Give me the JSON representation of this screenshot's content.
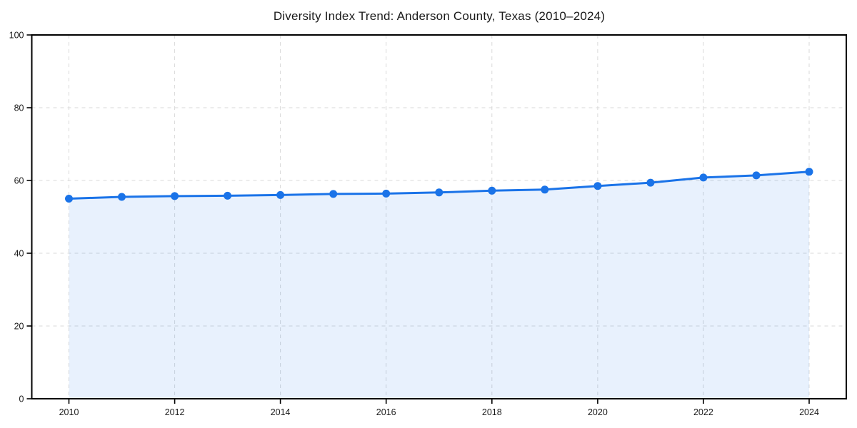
{
  "chart_data": {
    "type": "line",
    "title": "Diversity Index Trend: Anderson County, Texas (2010–2024)",
    "series_name": "Diversity Index",
    "x": [
      2010,
      2011,
      2012,
      2013,
      2014,
      2015,
      2016,
      2017,
      2018,
      2019,
      2020,
      2021,
      2022,
      2023,
      2024
    ],
    "values": [
      55.0,
      55.5,
      55.7,
      55.8,
      56.0,
      56.3,
      56.4,
      56.7,
      57.2,
      57.5,
      58.5,
      59.4,
      60.8,
      61.4,
      62.4
    ],
    "xlabel": "",
    "ylabel": "",
    "ylim": [
      0,
      100
    ],
    "xticks": [
      2010,
      2012,
      2014,
      2016,
      2018,
      2020,
      2022,
      2024
    ],
    "yticks": [
      0,
      20,
      40,
      60,
      80,
      100
    ],
    "grid": true,
    "grid_style": "dashed",
    "legend": false,
    "marker": "circle",
    "area_fill": true,
    "colors": {
      "line": "#1a73e8",
      "marker": "#1a73e8",
      "fill_opacity": 0.1,
      "grid": "#d9d9d9",
      "axis": "#000000",
      "tick_text": "#1a1a1a",
      "background": "#ffffff"
    }
  }
}
